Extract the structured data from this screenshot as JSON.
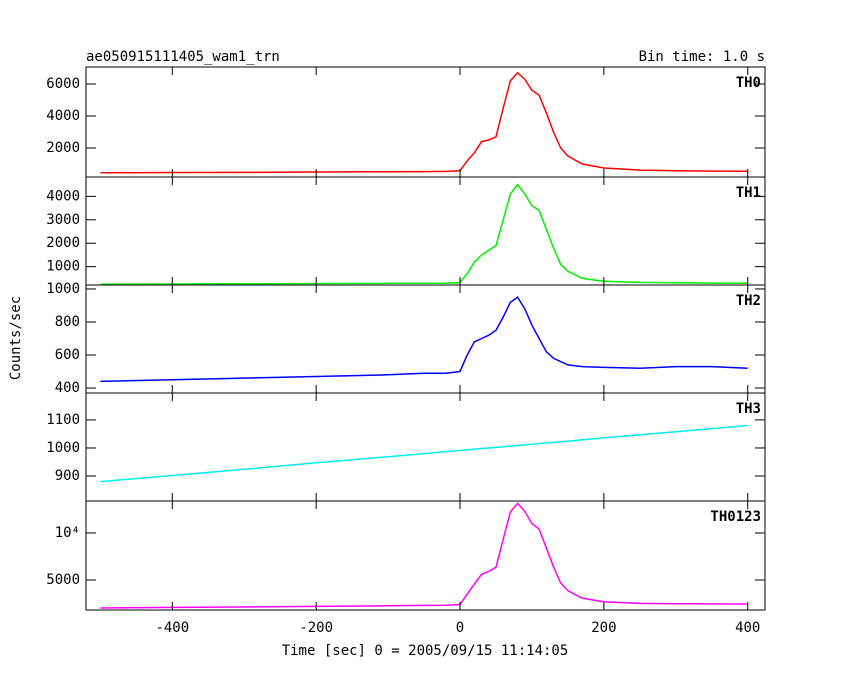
{
  "chart_data": [
    {
      "type": "line",
      "title": "ae050915111405_wam1_trn",
      "subtitle": "Bin time: 1.0 s",
      "x": [
        -500,
        -400,
        -300,
        -200,
        -100,
        -50,
        -20,
        0,
        10,
        20,
        30,
        40,
        50,
        60,
        70,
        80,
        90,
        100,
        110,
        120,
        130,
        140,
        150,
        170,
        200,
        250,
        300,
        350,
        400
      ],
      "xlim": [
        -520,
        424
      ],
      "xticks": [
        -400,
        -200,
        0,
        200,
        400
      ],
      "ylim": [
        190,
        7060
      ],
      "yticks": [
        2000,
        4000,
        6000
      ],
      "series": [
        {
          "name": "TH0",
          "color": "#ff0000",
          "values": [
            450,
            470,
            480,
            500,
            520,
            530,
            540,
            580,
            1200,
            1700,
            2400,
            2500,
            2700,
            4500,
            6200,
            6700,
            6300,
            5600,
            5300,
            4200,
            3000,
            2000,
            1500,
            1000,
            750,
            620,
            580,
            560,
            550
          ]
        }
      ]
    },
    {
      "type": "line",
      "x": [
        -500,
        -400,
        -300,
        -200,
        -100,
        -50,
        -20,
        0,
        10,
        20,
        30,
        40,
        50,
        60,
        70,
        80,
        90,
        100,
        110,
        120,
        130,
        140,
        150,
        170,
        200,
        250,
        300,
        350,
        400
      ],
      "xlim": [
        -520,
        424
      ],
      "xticks": [
        -400,
        -200,
        0,
        200,
        400
      ],
      "ylim": [
        217,
        4826
      ],
      "yticks": [
        1000,
        2000,
        3000,
        4000
      ],
      "series": [
        {
          "name": "TH1",
          "color": "#00ee00",
          "values": [
            250,
            260,
            270,
            280,
            290,
            295,
            300,
            320,
            700,
            1200,
            1500,
            1700,
            1900,
            3000,
            4100,
            4500,
            4100,
            3600,
            3400,
            2600,
            1800,
            1100,
            800,
            500,
            380,
            330,
            310,
            300,
            300
          ]
        }
      ]
    },
    {
      "type": "line",
      "ylabel": "Counts/sec",
      "x": [
        -500,
        -400,
        -300,
        -200,
        -100,
        -50,
        -20,
        0,
        10,
        20,
        30,
        40,
        50,
        60,
        70,
        80,
        90,
        100,
        110,
        120,
        130,
        140,
        150,
        170,
        200,
        250,
        300,
        350,
        400
      ],
      "xlim": [
        -520,
        424
      ],
      "xticks": [
        -400,
        -200,
        0,
        200,
        400
      ],
      "ylim": [
        370,
        1024
      ],
      "yticks": [
        400,
        600,
        800,
        1000
      ],
      "series": [
        {
          "name": "TH2",
          "color": "#0000ff",
          "values": [
            440,
            450,
            460,
            470,
            480,
            490,
            490,
            500,
            600,
            680,
            700,
            720,
            750,
            830,
            920,
            950,
            880,
            780,
            700,
            620,
            580,
            560,
            540,
            530,
            525,
            520,
            530,
            530,
            520
          ]
        }
      ]
    },
    {
      "type": "line",
      "x": [
        -500,
        -400,
        -300,
        -200,
        -100,
        -50,
        -20,
        0,
        10,
        20,
        30,
        40,
        50,
        60,
        70,
        80,
        90,
        100,
        110,
        120,
        130,
        140,
        150,
        170,
        200,
        250,
        300,
        350,
        400
      ],
      "xlim": [
        -520,
        424
      ],
      "xticks": [
        -400,
        -200,
        0,
        200,
        400
      ],
      "ylim": [
        811,
        1196
      ],
      "yticks": [
        900,
        1000,
        1100
      ],
      "series": [
        {
          "name": "TH3",
          "color": "#00eeee",
          "values": [
            880,
            902,
            924,
            947,
            969,
            980,
            987,
            991,
            993,
            996,
            998,
            1000,
            1002,
            1004,
            1007,
            1009,
            1011,
            1013,
            1016,
            1018,
            1020,
            1022,
            1024,
            1029,
            1036,
            1047,
            1058,
            1069,
            1080
          ]
        }
      ]
    },
    {
      "type": "line",
      "xlabel": "Time [sec] 0 = 2005/09/15 11:14:05",
      "x": [
        -500,
        -400,
        -300,
        -200,
        -100,
        -50,
        -20,
        0,
        10,
        20,
        30,
        40,
        50,
        60,
        70,
        80,
        90,
        100,
        110,
        120,
        130,
        140,
        150,
        170,
        200,
        250,
        300,
        350,
        400
      ],
      "xlim": [
        -520,
        424
      ],
      "xticks": [
        -400,
        -200,
        0,
        200,
        400
      ],
      "ylim": [
        1810,
        13400
      ],
      "yticks": [
        5000,
        {
          "value": 10000,
          "label": "10⁴"
        }
      ],
      "series": [
        {
          "name": "TH0123",
          "color": "#ff00ff",
          "values": [
            2020,
            2082,
            2134,
            2197,
            2259,
            2295,
            2317,
            2391,
            3493,
            4576,
            5598,
            5920,
            6352,
            9334,
            12227,
            13159,
            12291,
            10993,
            10416,
            8438,
            6400,
            4682,
            3864,
            3059,
            2691,
            2517,
            2478,
            2459,
            2450
          ]
        }
      ]
    }
  ]
}
